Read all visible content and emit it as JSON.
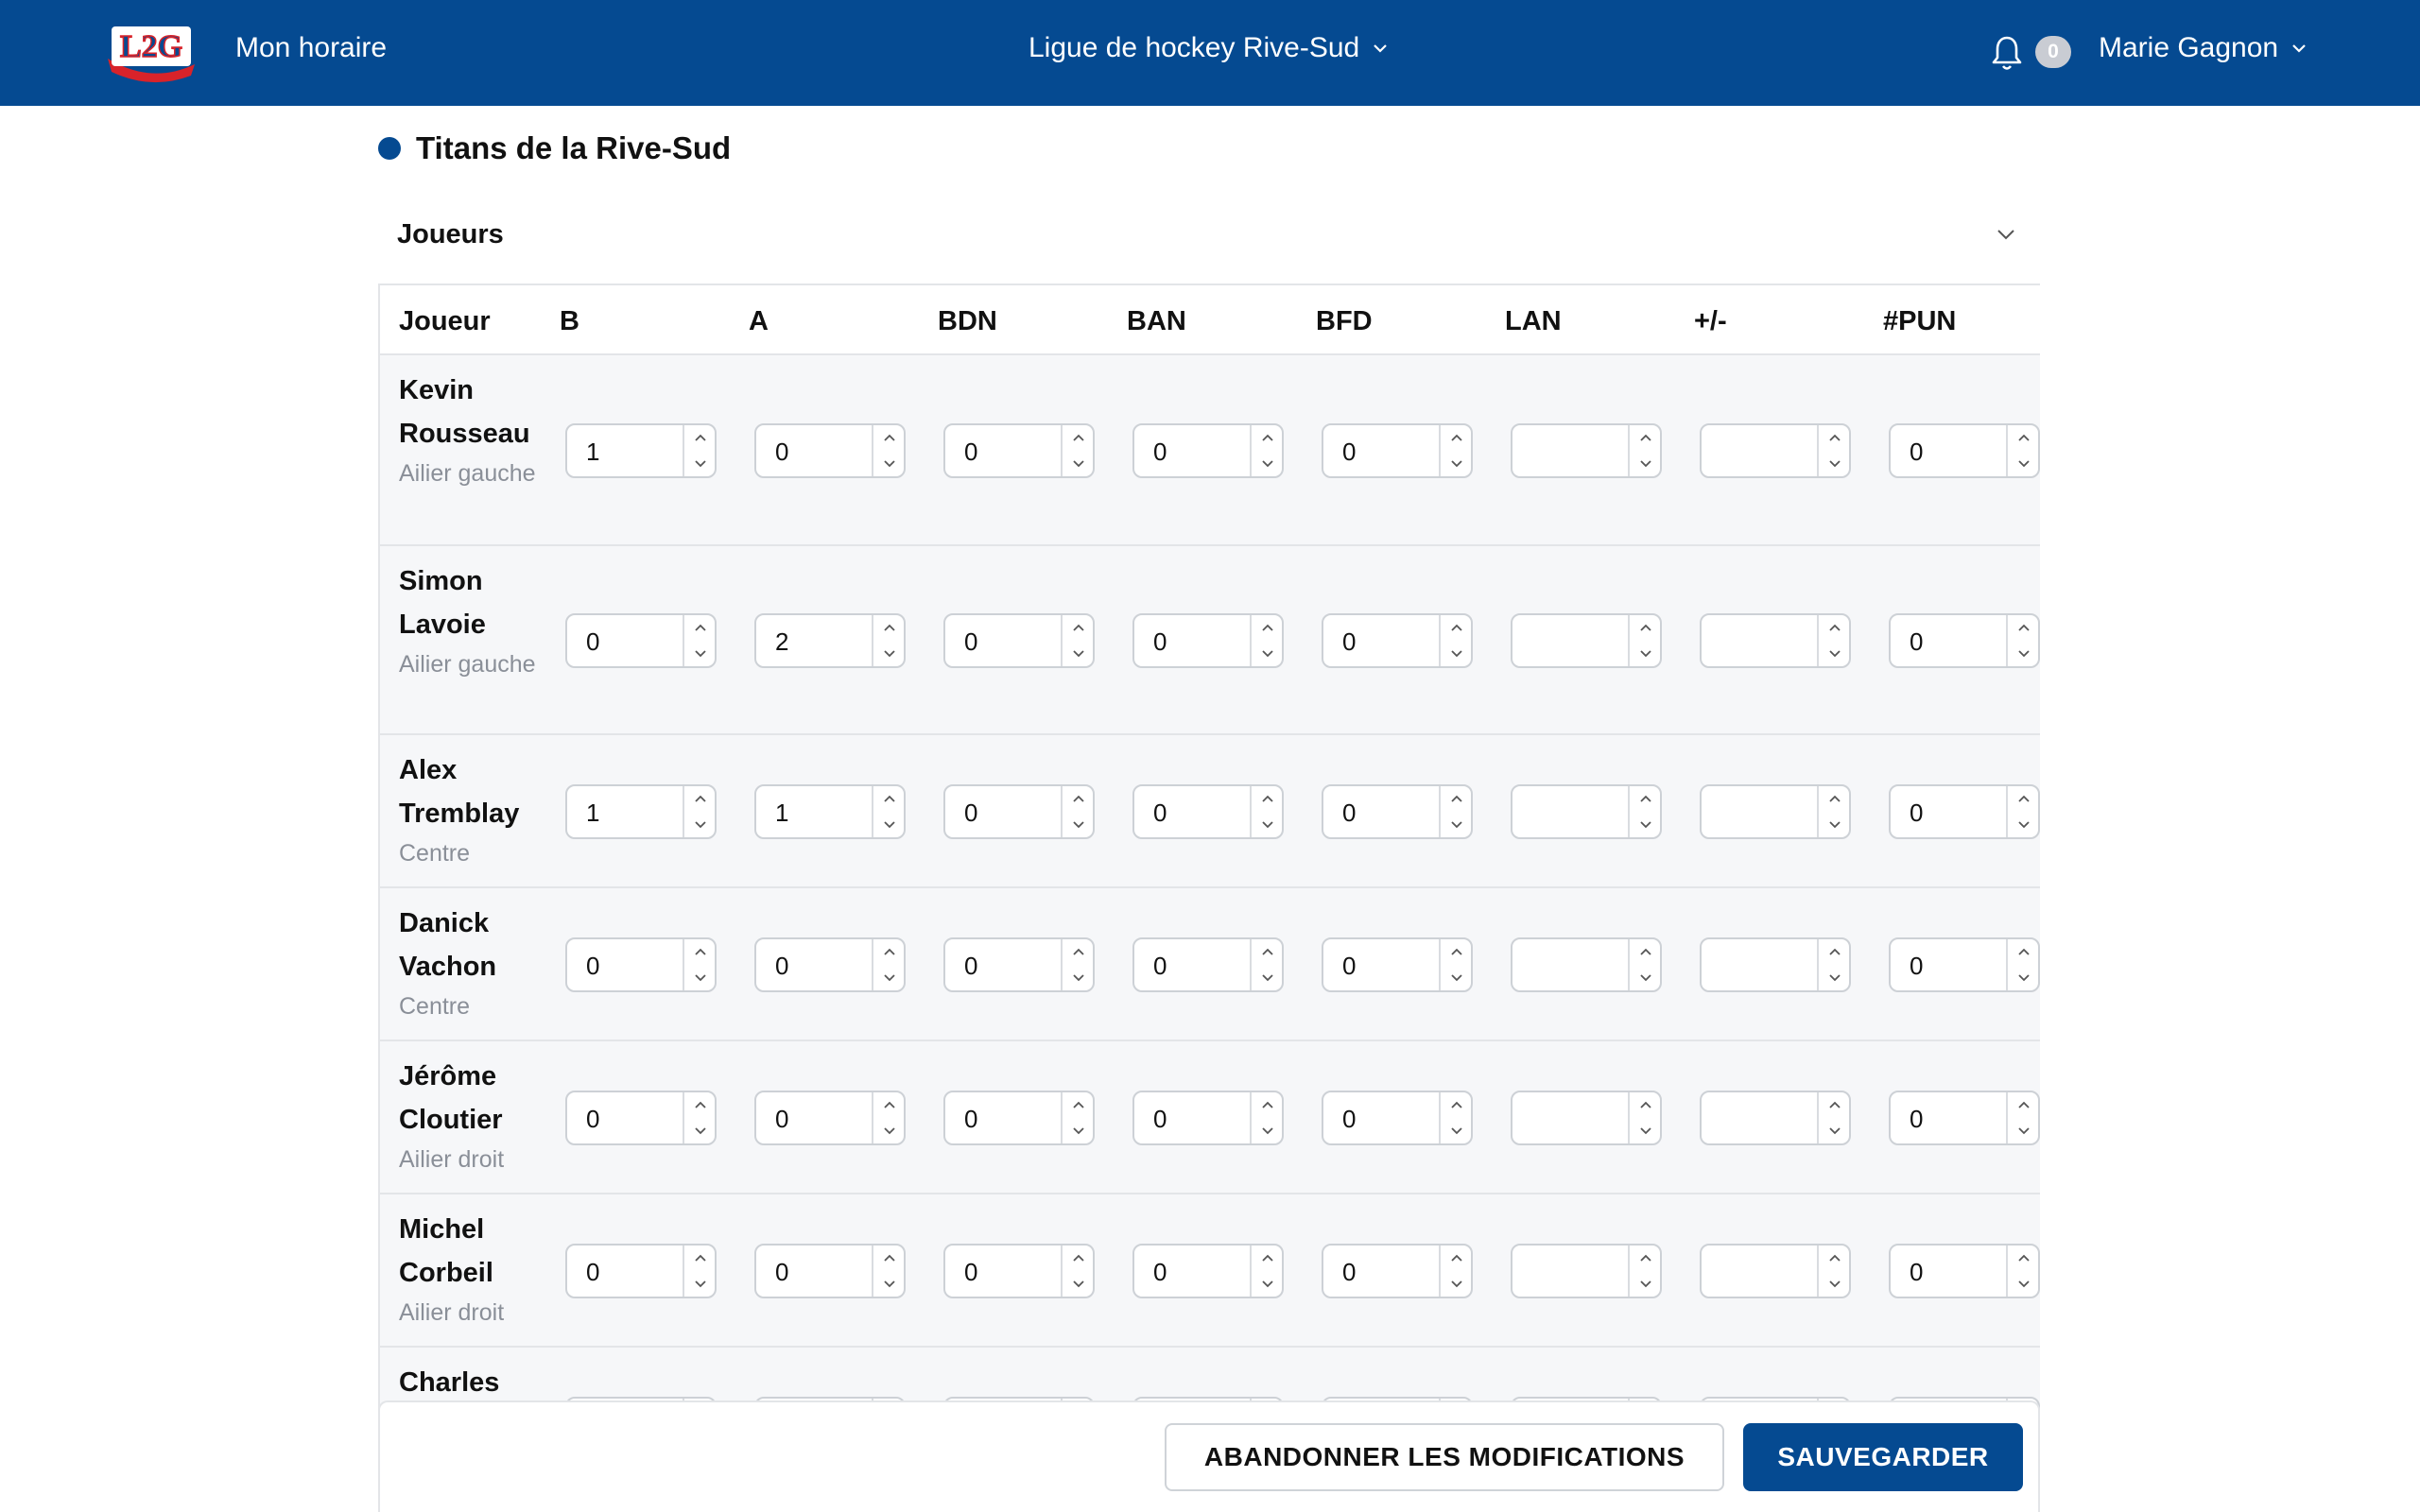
{
  "topbar": {
    "logo_text": "L2G",
    "nav_link": "Mon horaire",
    "league": "Ligue de hockey Rive-Sud",
    "notifications_count": "0",
    "user": "Marie Gagnon",
    "bg_color": "#054a91"
  },
  "team": {
    "name": "Titans de la Rive-Sud",
    "dot_color": "#054a91"
  },
  "section": {
    "title": "Joueurs",
    "toggle_icon": "chevron-down-icon"
  },
  "table": {
    "headers": [
      "Joueur",
      "B",
      "A",
      "BDN",
      "BAN",
      "BFD",
      "LAN",
      "+/-",
      "#PUN"
    ],
    "rows": [
      {
        "name": "Kevin Rousseau",
        "position": "Ailier gauche",
        "stats": [
          "1",
          "0",
          "0",
          "0",
          "0",
          "",
          "",
          "0"
        ]
      },
      {
        "name": "Simon Lavoie",
        "position": "Ailier gauche",
        "stats": [
          "0",
          "2",
          "0",
          "0",
          "0",
          "",
          "",
          "0"
        ]
      },
      {
        "name": "Alex Tremblay",
        "position": "Centre",
        "stats": [
          "1",
          "1",
          "0",
          "0",
          "0",
          "",
          "",
          "0"
        ]
      },
      {
        "name": "Danick Vachon",
        "position": "Centre",
        "stats": [
          "0",
          "0",
          "0",
          "0",
          "0",
          "",
          "",
          "0"
        ]
      },
      {
        "name": "Jérôme Cloutier",
        "position": "Ailier droit",
        "stats": [
          "0",
          "0",
          "0",
          "0",
          "0",
          "",
          "",
          "0"
        ]
      },
      {
        "name": "Michel Corbeil",
        "position": "Ailier droit",
        "stats": [
          "0",
          "0",
          "0",
          "0",
          "0",
          "",
          "",
          "0"
        ]
      },
      {
        "name": "Charles",
        "position": "",
        "stats": [
          "",
          "",
          "",
          "",
          "",
          "",
          "",
          ""
        ]
      }
    ]
  },
  "footer": {
    "discard_label": "ABANDONNER LES MODIFICATIONS",
    "save_label": "SAUVEGARDER",
    "save_color": "#054a91"
  }
}
